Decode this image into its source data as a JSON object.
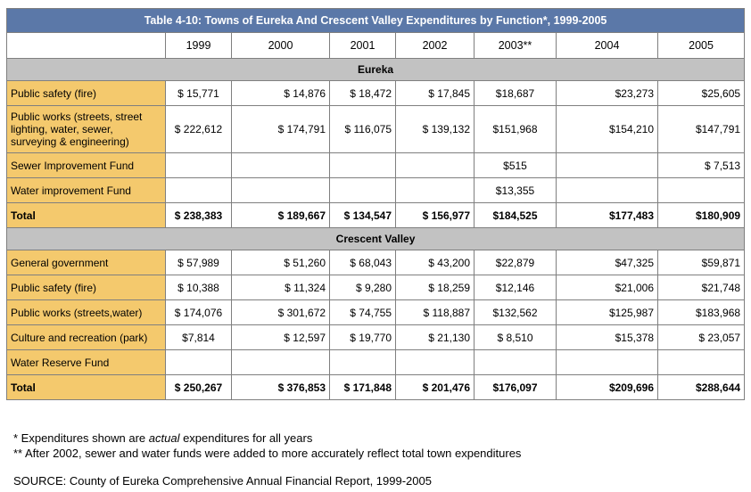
{
  "table": {
    "title": "Table 4-10: Towns of Eureka And Crescent Valley Expenditures by Function*, 1999-2005",
    "years": [
      "1999",
      "2000",
      "2001",
      "2002",
      "2003**",
      "2004",
      "2005"
    ],
    "sections": [
      {
        "name": "Eureka",
        "rows": [
          {
            "label": "Public safety (fire)",
            "values": [
              "$ 15,771",
              "$ 14,876",
              "$ 18,472",
              "$ 17,845",
              "$18,687",
              "$23,273",
              "$25,605"
            ]
          },
          {
            "label": "Public works (streets, street lighting, water, sewer, surveying & engineering)",
            "values": [
              "$ 222,612",
              "$ 174,791",
              "$ 116,075",
              "$ 139,132",
              "$151,968",
              "$154,210",
              "$147,791"
            ]
          },
          {
            "label": "Sewer Improvement Fund",
            "values": [
              "",
              "",
              "",
              "",
              "$515",
              "",
              "$ 7,513"
            ]
          },
          {
            "label": "Water improvement Fund",
            "values": [
              "",
              "",
              "",
              "",
              "$13,355",
              "",
              ""
            ]
          }
        ],
        "total": {
          "label": "Total",
          "values": [
            "$ 238,383",
            "$ 189,667",
            "$ 134,547",
            "$ 156,977",
            "$184,525",
            "$177,483",
            "$180,909"
          ]
        }
      },
      {
        "name": "Crescent Valley",
        "rows": [
          {
            "label": "General government",
            "values": [
              "$ 57,989",
              "$ 51,260",
              "$ 68,043",
              "$ 43,200",
              "$22,879",
              "$47,325",
              "$59,871"
            ]
          },
          {
            "label": "Public safety (fire)",
            "values": [
              "$ 10,388",
              "$ 11,324",
              "$ 9,280",
              "$ 18,259",
              "$12,146",
              "$21,006",
              "$21,748"
            ]
          },
          {
            "label": "Public works (streets,water)",
            "values": [
              "$ 174,076",
              "$ 301,672",
              "$ 74,755",
              "$ 118,887",
              "$132,562",
              "$125,987",
              "$183,968"
            ]
          },
          {
            "label": "Culture and recreation (park)",
            "values": [
              "$7,814",
              "$ 12,597",
              "$ 19,770",
              "$ 21,130",
              "$ 8,510",
              "$15,378",
              "$ 23,057"
            ]
          },
          {
            "label": "Water Reserve Fund",
            "values": [
              "",
              "",
              "",
              "",
              "",
              "",
              ""
            ]
          }
        ],
        "total": {
          "label": "Total",
          "values": [
            "$ 250,267",
            "$ 376,853",
            "$ 171,848",
            "$ 201,476",
            "$176,097",
            "$209,696",
            "$288,644"
          ]
        }
      }
    ]
  },
  "notes": {
    "note1_pre": "* Expenditures shown are ",
    "note1_em": "actual",
    "note1_post": " expenditures for all years",
    "note2": "** After 2002, sewer and water funds were added to more accurately reflect total town expenditures"
  },
  "source": "SOURCE: County of Eureka Comprehensive Annual Financial Report, 1999-2005",
  "colors": {
    "title_bg": "#5b78a8",
    "label_bg": "#f4c96d",
    "section_bg": "#c2c2c2",
    "border": "#7f7f7f"
  }
}
